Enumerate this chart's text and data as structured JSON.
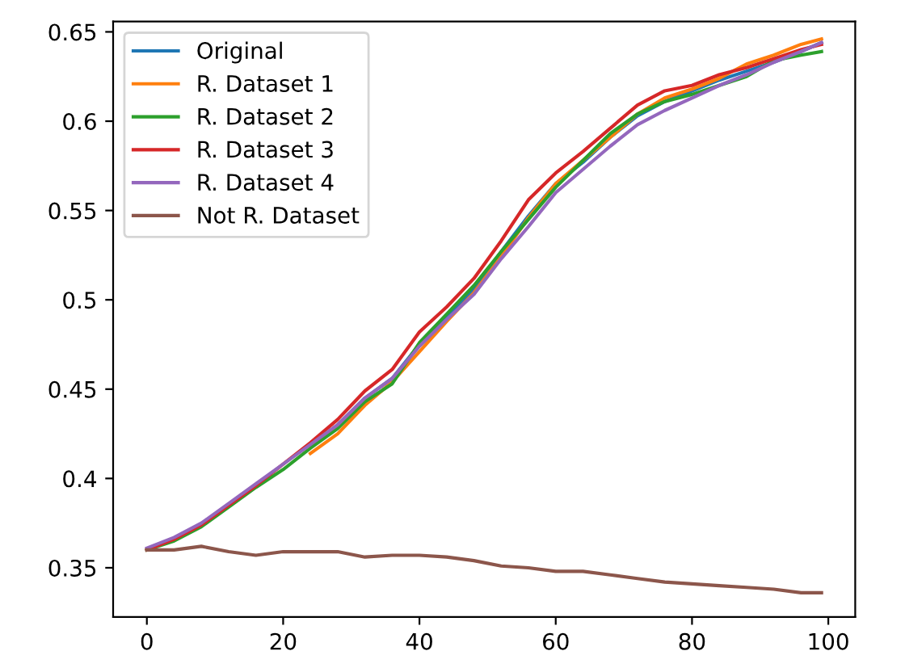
{
  "chart_data": {
    "type": "line",
    "x": [
      0,
      4,
      8,
      12,
      16,
      20,
      24,
      28,
      32,
      36,
      40,
      44,
      48,
      52,
      56,
      60,
      64,
      68,
      72,
      76,
      80,
      84,
      88,
      92,
      96,
      99
    ],
    "xlim": [
      -4.95,
      103.95
    ],
    "xticks": [
      0,
      20,
      40,
      60,
      80,
      100
    ],
    "ylim": [
      0.3225,
      0.6558
    ],
    "yticks": [
      0.35,
      0.4,
      0.45,
      0.5,
      0.55,
      0.6,
      0.65
    ],
    "legend": "top left",
    "grid": false,
    "marker": "none",
    "line_style": "solid",
    "series": [
      {
        "name": "Original",
        "color": "#1f77b4",
        "values": [
          null,
          null,
          null,
          null,
          null,
          null,
          0.418,
          0.43,
          0.445,
          0.456,
          0.475,
          0.49,
          0.506,
          0.527,
          0.547,
          0.565,
          0.577,
          0.591,
          0.603,
          0.611,
          0.617,
          0.623,
          0.628,
          0.633,
          0.639,
          0.644
        ]
      },
      {
        "name": "R. Dataset 1",
        "color": "#ff7f0e",
        "values": [
          null,
          null,
          null,
          null,
          null,
          null,
          0.414,
          0.425,
          0.441,
          0.454,
          0.471,
          0.488,
          0.504,
          0.524,
          0.546,
          0.565,
          0.578,
          0.591,
          0.604,
          0.613,
          0.618,
          0.624,
          0.632,
          0.637,
          0.643,
          0.646
        ]
      },
      {
        "name": "R. Dataset 2",
        "color": "#2ca02c",
        "values": [
          0.36,
          0.365,
          0.373,
          0.384,
          0.395,
          0.405,
          0.417,
          0.428,
          0.443,
          0.453,
          0.476,
          0.492,
          0.508,
          0.527,
          0.545,
          0.563,
          0.578,
          0.593,
          0.604,
          0.611,
          0.615,
          0.62,
          0.625,
          0.634,
          0.637,
          0.639
        ]
      },
      {
        "name": "R. Dataset 3",
        "color": "#d62728",
        "values": [
          0.36,
          0.366,
          0.374,
          0.385,
          0.396,
          0.408,
          0.42,
          0.433,
          0.449,
          0.461,
          0.482,
          0.496,
          0.512,
          0.533,
          0.556,
          0.571,
          0.583,
          0.596,
          0.609,
          0.617,
          0.62,
          0.626,
          0.63,
          0.635,
          0.64,
          0.643
        ]
      },
      {
        "name": "R. Dataset 4",
        "color": "#9467bd",
        "values": [
          0.361,
          0.367,
          0.375,
          0.386,
          0.397,
          0.408,
          0.419,
          0.43,
          0.445,
          0.456,
          0.474,
          0.489,
          0.503,
          0.523,
          0.541,
          0.56,
          0.573,
          0.586,
          0.598,
          0.606,
          0.613,
          0.62,
          0.626,
          0.633,
          0.639,
          0.644
        ]
      },
      {
        "name": "Not R. Dataset",
        "color": "#8c564b",
        "values": [
          0.36,
          0.36,
          0.362,
          0.359,
          0.357,
          0.359,
          0.359,
          0.359,
          0.356,
          0.357,
          0.357,
          0.356,
          0.354,
          0.351,
          0.35,
          0.348,
          0.348,
          0.346,
          0.344,
          0.342,
          0.341,
          0.34,
          0.339,
          0.338,
          0.336,
          0.336
        ]
      }
    ]
  }
}
